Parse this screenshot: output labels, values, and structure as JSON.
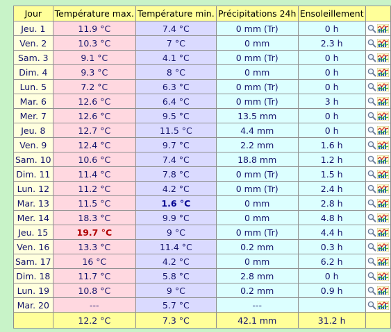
{
  "headers": {
    "day": "Jour",
    "tmax": "Température max.",
    "tmin": "Température min.",
    "precip": "Précipitations 24h",
    "sun": "Ensoleillement"
  },
  "rows": [
    {
      "day": "Jeu. 1",
      "tmax": "11.9 °C",
      "tmin": "7.4 °C",
      "precip": "0 mm (Tr)",
      "sun": "0 h"
    },
    {
      "day": "Ven. 2",
      "tmax": "10.3 °C",
      "tmin": "7 °C",
      "precip": "0 mm",
      "sun": "2.3 h"
    },
    {
      "day": "Sam. 3",
      "tmax": "9.1 °C",
      "tmin": "4.1 °C",
      "precip": "0 mm (Tr)",
      "sun": "0 h"
    },
    {
      "day": "Dim. 4",
      "tmax": "9.3 °C",
      "tmin": "8 °C",
      "precip": "0 mm",
      "sun": "0 h"
    },
    {
      "day": "Lun. 5",
      "tmax": "7.2 °C",
      "tmin": "6.3 °C",
      "precip": "0 mm (Tr)",
      "sun": "0 h"
    },
    {
      "day": "Mar. 6",
      "tmax": "12.6 °C",
      "tmin": "6.4 °C",
      "precip": "0 mm (Tr)",
      "sun": "3 h"
    },
    {
      "day": "Mer. 7",
      "tmax": "12.6 °C",
      "tmin": "9.5 °C",
      "precip": "13.5 mm",
      "sun": "0 h"
    },
    {
      "day": "Jeu. 8",
      "tmax": "12.7 °C",
      "tmin": "11.5 °C",
      "precip": "4.4 mm",
      "sun": "0 h"
    },
    {
      "day": "Ven. 9",
      "tmax": "12.4 °C",
      "tmin": "9.7 °C",
      "precip": "2.2 mm",
      "sun": "1.6 h"
    },
    {
      "day": "Sam. 10",
      "tmax": "10.6 °C",
      "tmin": "7.4 °C",
      "precip": "18.8 mm",
      "sun": "1.2 h"
    },
    {
      "day": "Dim. 11",
      "tmax": "11.4 °C",
      "tmin": "7.8 °C",
      "precip": "0 mm (Tr)",
      "sun": "1.5 h"
    },
    {
      "day": "Lun. 12",
      "tmax": "11.2 °C",
      "tmin": "4.2 °C",
      "precip": "0 mm (Tr)",
      "sun": "2.4 h"
    },
    {
      "day": "Mar. 13",
      "tmax": "11.5 °C",
      "tmin": "1.6 °C",
      "precip": "0 mm",
      "sun": "2.8 h",
      "tmin_highlight": true
    },
    {
      "day": "Mer. 14",
      "tmax": "18.3 °C",
      "tmin": "9.9 °C",
      "precip": "0 mm",
      "sun": "4.8 h"
    },
    {
      "day": "Jeu. 15",
      "tmax": "19.7 °C",
      "tmin": "9 °C",
      "precip": "0 mm (Tr)",
      "sun": "4.4 h",
      "tmax_highlight": true
    },
    {
      "day": "Ven. 16",
      "tmax": "13.3 °C",
      "tmin": "11.4 °C",
      "precip": "0.2 mm",
      "sun": "0.3 h"
    },
    {
      "day": "Sam. 17",
      "tmax": "16 °C",
      "tmin": "4.2 °C",
      "precip": "0 mm",
      "sun": "6.2 h"
    },
    {
      "day": "Dim. 18",
      "tmax": "11.7 °C",
      "tmin": "5.8 °C",
      "precip": "2.8 mm",
      "sun": "0 h"
    },
    {
      "day": "Lun. 19",
      "tmax": "10.8 °C",
      "tmin": "9 °C",
      "precip": "0.2 mm",
      "sun": "0.9 h"
    },
    {
      "day": "Mar. 20",
      "tmax": "---",
      "tmin": "5.7 °C",
      "precip": "---",
      "sun": ""
    }
  ],
  "footer": {
    "tmax": "12.2 °C",
    "tmin": "7.3 °C",
    "precip": "42.1 mm",
    "sun": "31.2 h"
  },
  "icons": {
    "detail": "magnifier-icon",
    "graph": "mini-chart-icon"
  },
  "colors": {
    "background": "#c8f3c8",
    "header": "#ffff99",
    "day_col": "#ffffde",
    "tmax_col": "#ffd8e0",
    "tmin_col": "#dadaff",
    "precip_col": "#dcffff",
    "sun_col": "#dcffff",
    "text": "#13136b",
    "highlight_min": "#000090",
    "highlight_max": "#b00000"
  }
}
